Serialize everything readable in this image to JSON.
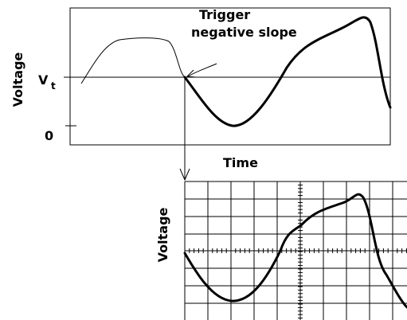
{
  "top_plot": {
    "y_label": "Voltage",
    "vt_label": "V",
    "vt_subscript": "t",
    "zero_label": "0",
    "x_label": "Time"
  },
  "annotation": {
    "line1": "Trigger",
    "line2": "negative slope"
  },
  "scope": {
    "y_label": "Voltage"
  }
}
